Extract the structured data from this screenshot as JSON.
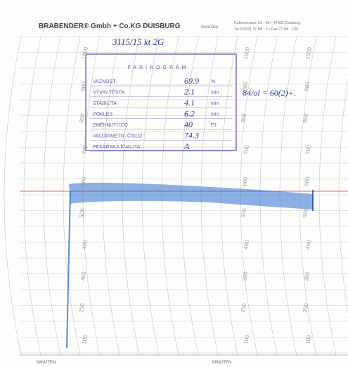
{
  "header": {
    "company": "BRABENDER® Gmbh + Co.KG DUISBURG",
    "country": "Germany",
    "address": "Kulturstrasse 51 - 55 • 47055 Duisburg",
    "phone": "Tel (0203) 77 88 - 0 • Fax 77 88 - 100"
  },
  "annotations": {
    "sample": "3115/15 kt 2G",
    "result": "84/ol = 60(2)+."
  },
  "stamp": {
    "title": "FARINOGRAM",
    "rows": [
      [
        "VAZNOST",
        "69.9",
        "%"
      ],
      [
        "VÝVIN TĚSTA",
        "2.1",
        "min"
      ],
      [
        "STABILITA",
        "4.1",
        "min"
      ],
      [
        "POKLES",
        "6.2",
        "min"
      ],
      [
        "ZMĚKNUTÍ ICC",
        "40",
        "FJ"
      ],
      [
        "VALORIMETR. ČÍSLO",
        "74.3",
        ""
      ],
      [
        "PEKAŘSKÁ KVALITA",
        "A",
        ""
      ]
    ]
  },
  "scale": [
    "1000",
    "900",
    "800",
    "700",
    "600",
    "500",
    "400",
    "300",
    "200",
    "100"
  ],
  "axis": [
    "MINUTEN",
    "MINUTEN"
  ]
}
